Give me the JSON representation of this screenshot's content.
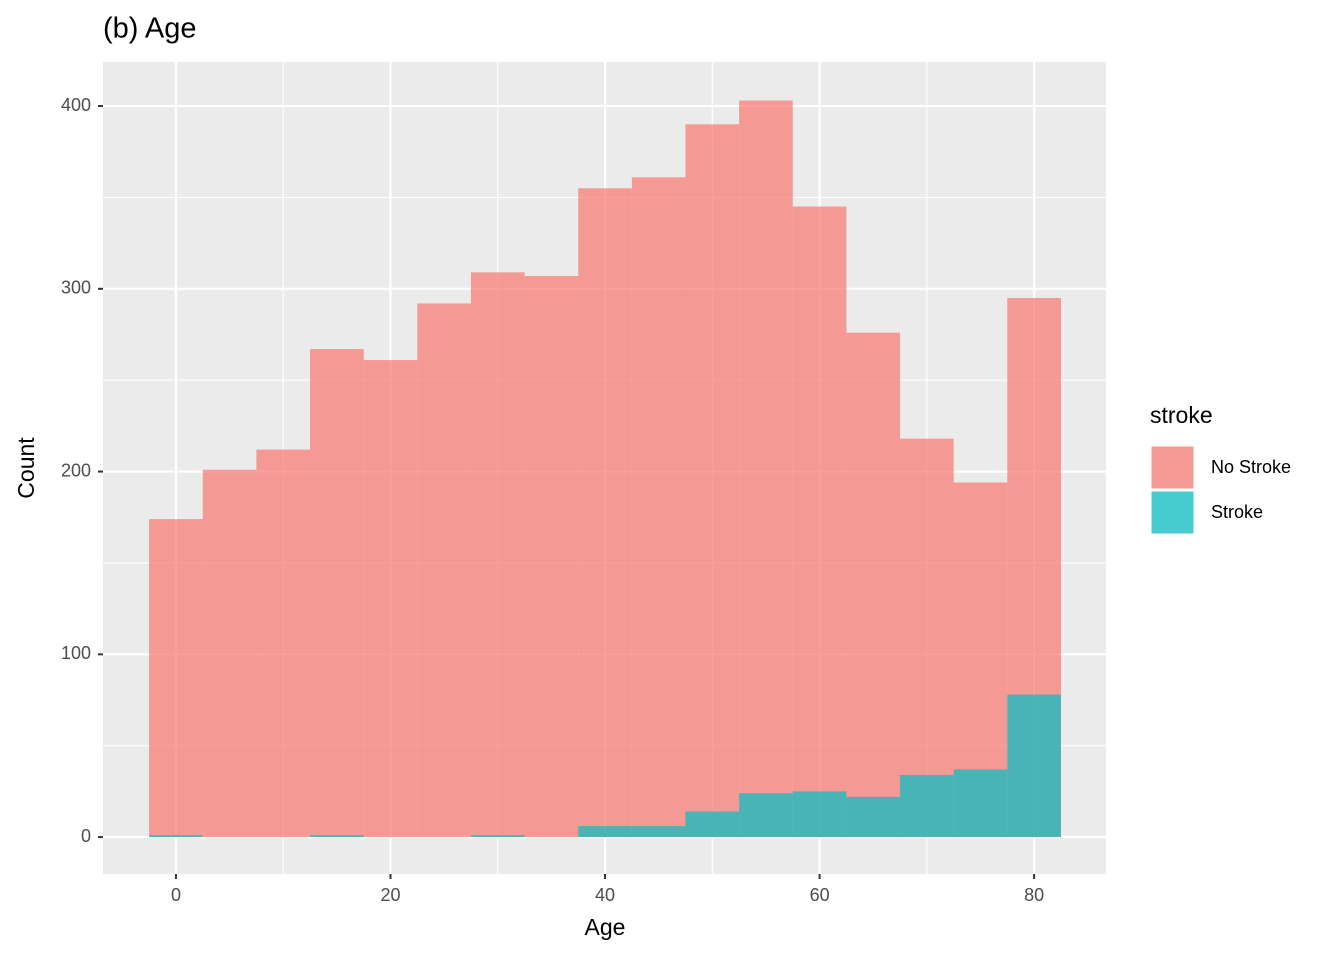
{
  "chart_data": {
    "type": "histogram",
    "title": "(b) Age",
    "x_label": "Age",
    "y_label": "Count",
    "bins": [
      -2.5,
      2.5,
      7.5,
      12.5,
      17.5,
      22.5,
      27.5,
      32.5,
      37.5,
      42.5,
      47.5,
      52.5,
      57.5,
      62.5,
      67.5,
      72.5,
      77.5,
      82.5
    ],
    "series": [
      {
        "name": "No Stroke",
        "color": "#F8766D",
        "values": [
          174,
          201,
          212,
          267,
          261,
          292,
          309,
          307,
          355,
          361,
          390,
          403,
          345,
          276,
          218,
          194,
          295
        ]
      },
      {
        "name": "Stroke",
        "color": "#00BFC4",
        "values": [
          1,
          0,
          0,
          1,
          0,
          0,
          1,
          0,
          6,
          6,
          14,
          24,
          25,
          22,
          34,
          37,
          78
        ]
      }
    ],
    "alpha": 0.7,
    "legend_title": "stroke",
    "legend": "right",
    "xlim": [
      -6.8,
      86.7
    ],
    "ylim": [
      -20.2,
      424.1
    ],
    "xticks": [
      0,
      20,
      40,
      60,
      80
    ],
    "yticks": [
      0,
      100,
      200,
      300,
      400
    ],
    "grid": true
  }
}
